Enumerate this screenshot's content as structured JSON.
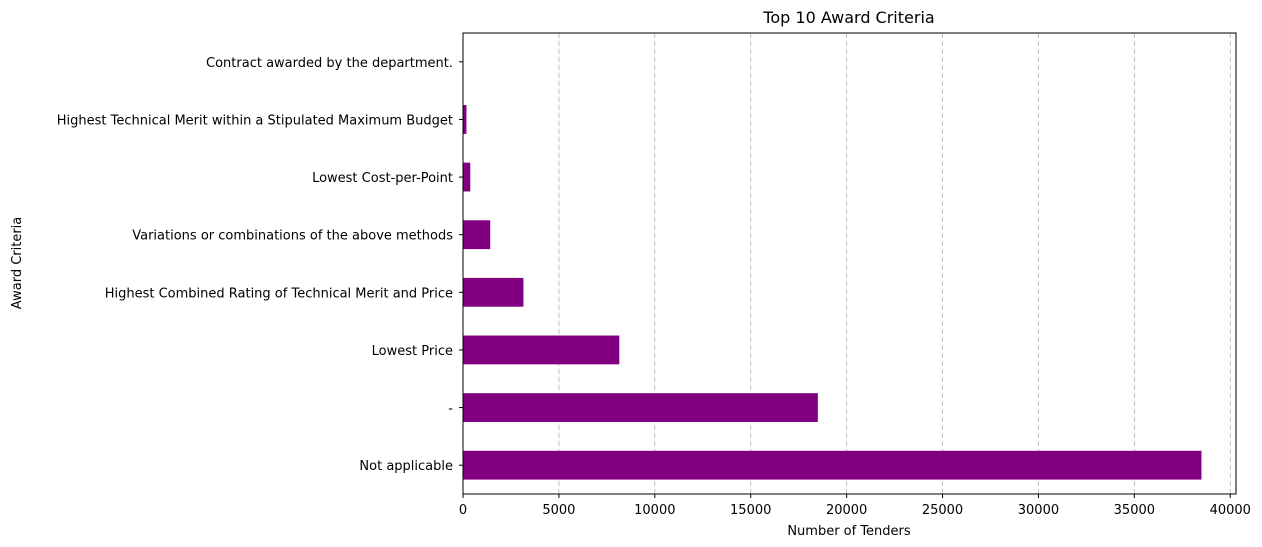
{
  "chart_data": {
    "type": "bar",
    "orientation": "horizontal",
    "title": "Top 10 Award Criteria",
    "xlabel": "Number of Tenders",
    "ylabel": "Award Criteria",
    "categories": [
      "Not applicable",
      "-",
      "Lowest Price",
      "Highest Combined Rating of Technical Merit and Price",
      "Variations or combinations of the above methods",
      "Lowest Cost-per-Point",
      "Highest Technical Merit within a Stipulated Maximum Budget",
      "Contract awarded by the department."
    ],
    "values": [
      38500,
      18500,
      8150,
      3150,
      1420,
      380,
      180,
      20
    ],
    "xlim": [
      0,
      40300
    ],
    "xticks": [
      0,
      5000,
      10000,
      15000,
      20000,
      25000,
      30000,
      35000,
      40000
    ],
    "grid": "x",
    "bar_color": "#800080"
  }
}
